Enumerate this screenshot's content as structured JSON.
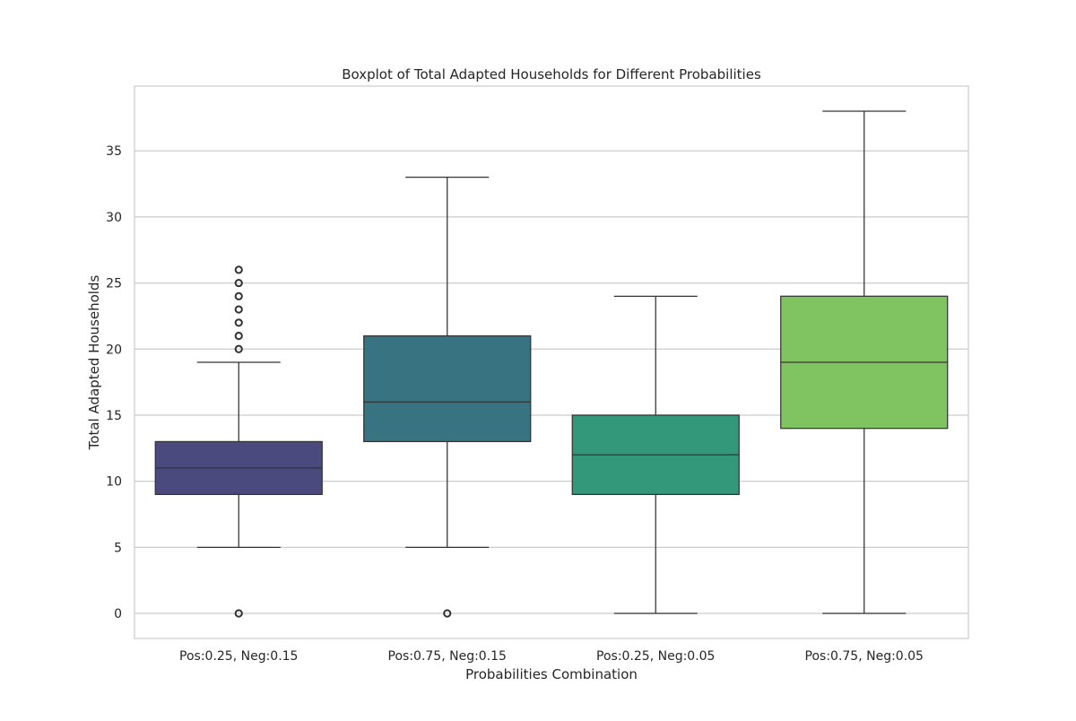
{
  "chart_data": {
    "type": "box",
    "title": "Boxplot of Total Adapted Households for Different Probabilities",
    "xlabel": "Probabilities Combination",
    "ylabel": "Total Adapted Households",
    "ylim": [
      -1.9,
      39.9
    ],
    "yticks": [
      0,
      5,
      10,
      15,
      20,
      25,
      30,
      35
    ],
    "grid": true,
    "categories": [
      "Pos:0.25, Neg:0.15",
      "Pos:0.75, Neg:0.15",
      "Pos:0.25, Neg:0.05",
      "Pos:0.75, Neg:0.05"
    ],
    "boxes": [
      {
        "category": "Pos:0.25, Neg:0.15",
        "whisker_low": 5,
        "q1": 9,
        "median": 11,
        "q3": 13,
        "whisker_high": 19,
        "outliers": [
          0,
          20,
          21,
          22,
          23,
          24,
          25,
          26
        ],
        "color": "#4a4a7f"
      },
      {
        "category": "Pos:0.75, Neg:0.15",
        "whisker_low": 5,
        "q1": 13,
        "median": 16,
        "q3": 21,
        "whisker_high": 33,
        "outliers": [
          0
        ],
        "color": "#377381"
      },
      {
        "category": "Pos:0.25, Neg:0.05",
        "whisker_low": 0,
        "q1": 9,
        "median": 12,
        "q3": 15,
        "whisker_high": 24,
        "outliers": [],
        "color": "#33987a"
      },
      {
        "category": "Pos:0.75, Neg:0.05",
        "whisker_low": 0,
        "q1": 14,
        "median": 19,
        "q3": 24,
        "whisker_high": 38,
        "outliers": [],
        "color": "#80c462"
      }
    ],
    "colors": {
      "grid": "#cccccc",
      "frame": "#cccccc",
      "line": "#333333",
      "text": "#262626"
    }
  }
}
